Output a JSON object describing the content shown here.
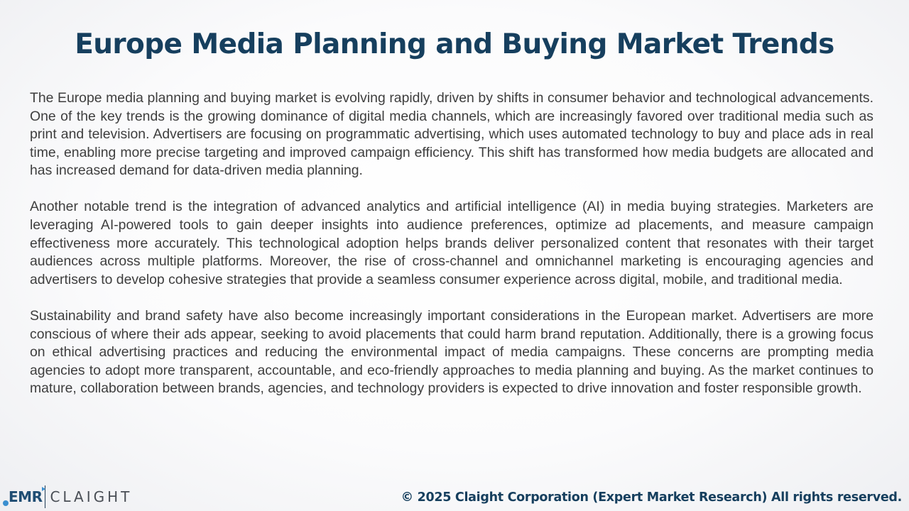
{
  "title": "Europe Media Planning and Buying Market Trends",
  "paragraphs": [
    "The Europe media planning and buying market is evolving rapidly, driven by shifts in consumer behavior and technological advancements. One of the key trends is the growing dominance of digital media channels, which are increasingly favored over traditional media such as print and television. Advertisers are focusing on programmatic advertising, which uses automated technology to buy and place ads in real time, enabling more precise targeting and improved campaign efficiency. This shift has transformed how media budgets are allocated and has increased demand for data-driven media planning.",
    "Another notable trend is the integration of advanced analytics and artificial intelligence (AI) in media buying strategies. Marketers are leveraging AI-powered tools to gain deeper insights into audience preferences, optimize ad placements, and measure campaign effectiveness more accurately. This technological adoption helps brands deliver personalized content that resonates with their target audiences across multiple platforms. Moreover, the rise of cross-channel and omnichannel marketing is encouraging agencies and advertisers to develop cohesive strategies that provide a seamless consumer experience across digital, mobile, and traditional media.",
    "Sustainability and brand safety have also become increasingly important considerations in the European market. Advertisers are more conscious of where their ads appear, seeking to avoid placements that could harm brand reputation. Additionally, there is a growing focus on ethical advertising practices and reducing the environmental impact of media campaigns. These concerns are prompting media agencies to adopt more transparent, accountable, and eco-friendly approaches to media planning and buying. As the market continues to mature, collaboration between brands, agencies, and technology providers is expected to drive innovation and foster responsible growth."
  ],
  "logo": {
    "left_text": "EMR",
    "right_text": "CLAIGHT"
  },
  "footer": {
    "copyright": "© 2025 Claight Corporation (Expert Market Research) All rights reserved."
  },
  "colors": {
    "title": "#163f5e",
    "body_text": "#3e3e3e",
    "logo_accent": "#3a8fd0"
  }
}
